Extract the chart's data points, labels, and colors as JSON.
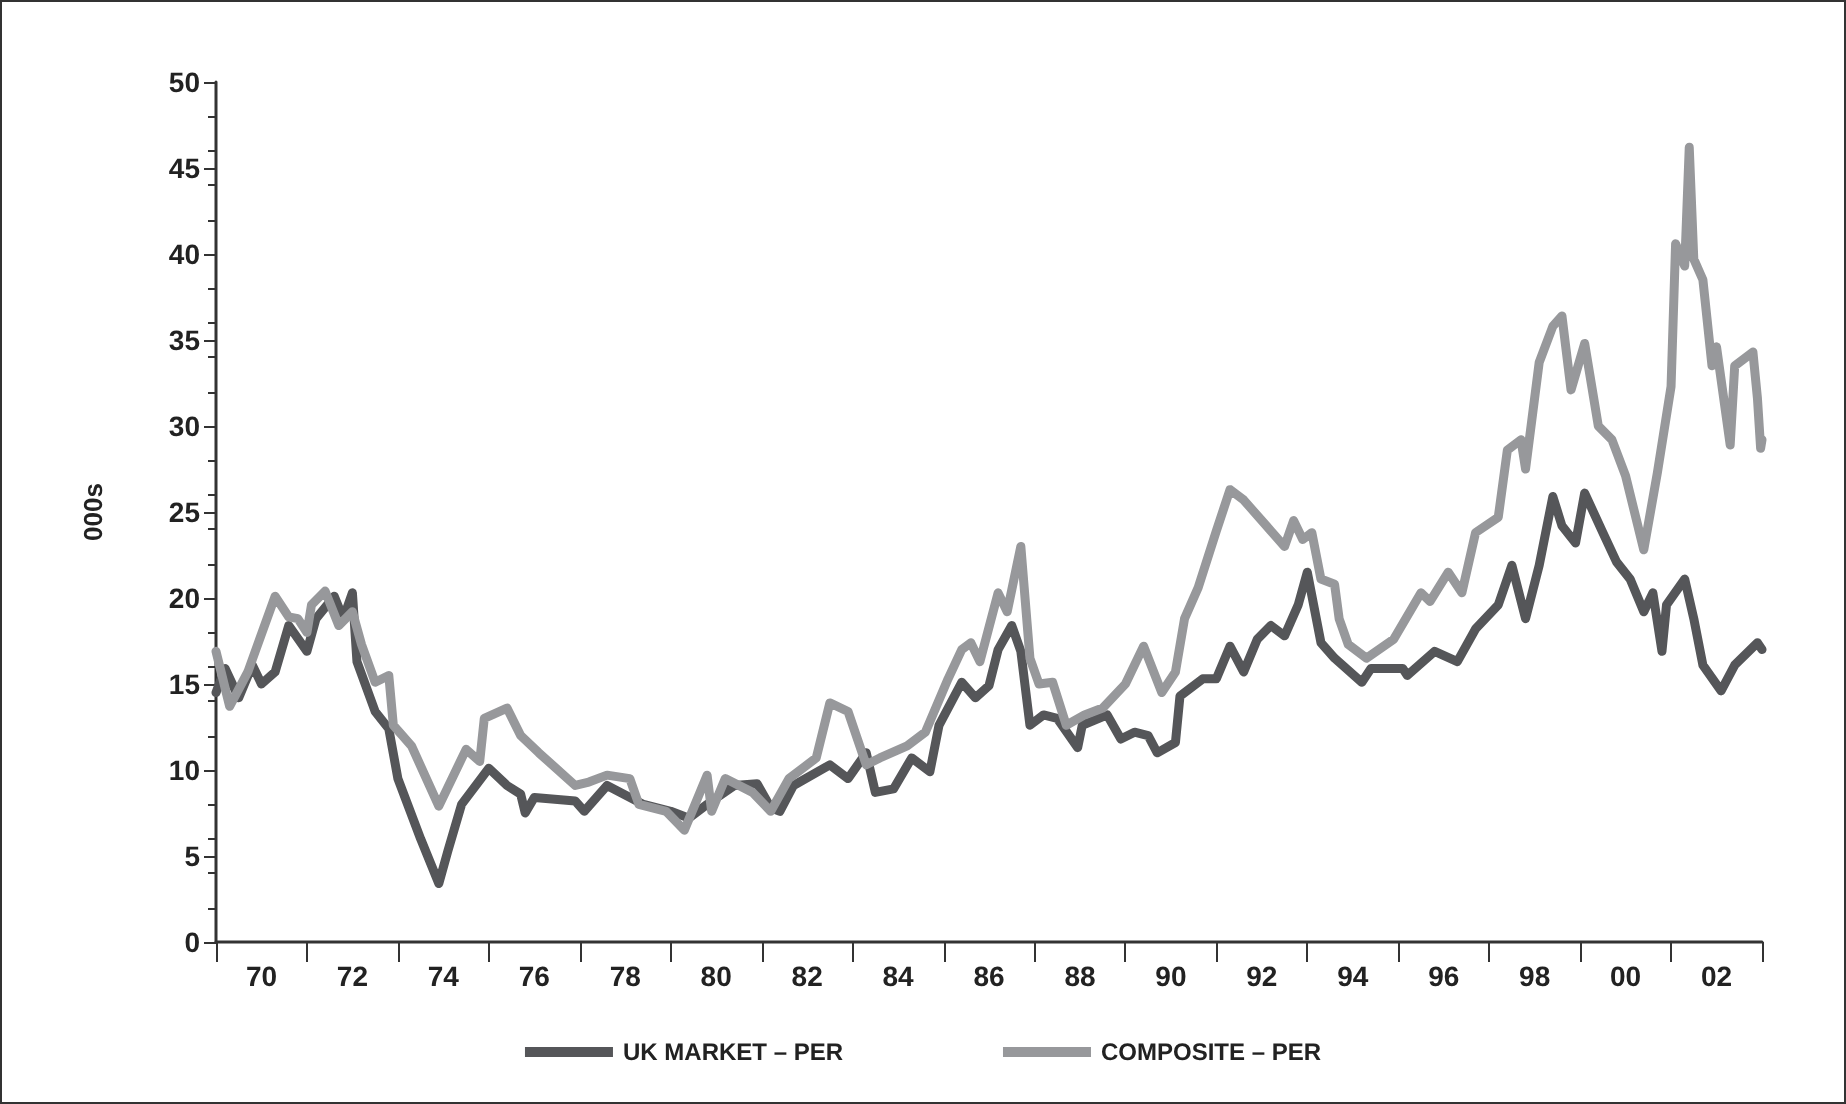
{
  "chart_data": {
    "type": "line",
    "ylabel": "000s",
    "xlim": [
      1969,
      2003
    ],
    "xticks": [
      {
        "value": 1969,
        "label": null
      },
      {
        "value": 1970,
        "label": "70"
      },
      {
        "value": 1971,
        "label": null
      },
      {
        "value": 1972,
        "label": "72"
      },
      {
        "value": 1973,
        "label": null
      },
      {
        "value": 1974,
        "label": "74"
      },
      {
        "value": 1975,
        "label": null
      },
      {
        "value": 1976,
        "label": "76"
      },
      {
        "value": 1977,
        "label": null
      },
      {
        "value": 1978,
        "label": "78"
      },
      {
        "value": 1979,
        "label": null
      },
      {
        "value": 1980,
        "label": "80"
      },
      {
        "value": 1981,
        "label": null
      },
      {
        "value": 1982,
        "label": "82"
      },
      {
        "value": 1983,
        "label": null
      },
      {
        "value": 1984,
        "label": "84"
      },
      {
        "value": 1985,
        "label": null
      },
      {
        "value": 1986,
        "label": "86"
      },
      {
        "value": 1987,
        "label": null
      },
      {
        "value": 1988,
        "label": "88"
      },
      {
        "value": 1989,
        "label": null
      },
      {
        "value": 1990,
        "label": "90"
      },
      {
        "value": 1991,
        "label": null
      },
      {
        "value": 1992,
        "label": "92"
      },
      {
        "value": 1993,
        "label": null
      },
      {
        "value": 1994,
        "label": "94"
      },
      {
        "value": 1995,
        "label": null
      },
      {
        "value": 1996,
        "label": "96"
      },
      {
        "value": 1997,
        "label": null
      },
      {
        "value": 1998,
        "label": "98"
      },
      {
        "value": 1999,
        "label": null
      },
      {
        "value": 2000,
        "label": "00"
      },
      {
        "value": 2001,
        "label": null
      },
      {
        "value": 2002,
        "label": "02"
      },
      {
        "value": 2003,
        "label": null
      }
    ],
    "ylim": [
      0,
      50
    ],
    "yticks": [
      0,
      5,
      10,
      15,
      20,
      25,
      30,
      35,
      40,
      45,
      50
    ],
    "grid": false,
    "legend": "bottom",
    "marker": "none",
    "line_style": "solid",
    "series": [
      {
        "name": "UK MARKET – PER",
        "color": "#555659",
        "x": [
          1969.0,
          1969.2,
          1969.5,
          1969.8,
          1970.0,
          1970.3,
          1970.6,
          1971.0,
          1971.2,
          1971.6,
          1971.8,
          1972.0,
          1972.1,
          1972.5,
          1972.8,
          1973.0,
          1973.5,
          1973.9,
          1974.1,
          1974.4,
          1975.0,
          1975.4,
          1975.7,
          1975.8,
          1976.0,
          1976.9,
          1977.1,
          1977.6,
          1978.4,
          1979.0,
          1979.4,
          1979.8,
          1980.4,
          1980.9,
          1981.2,
          1981.4,
          1981.7,
          1982.5,
          1982.9,
          1983.3,
          1983.5,
          1983.9,
          1984.3,
          1984.7,
          1984.9,
          1985.4,
          1985.7,
          1986.0,
          1986.2,
          1986.5,
          1986.7,
          1986.9,
          1987.2,
          1987.5,
          1987.95,
          1988.05,
          1988.6,
          1988.9,
          1989.2,
          1989.5,
          1989.7,
          1990.1,
          1990.2,
          1990.7,
          1991.0,
          1991.3,
          1991.6,
          1991.9,
          1992.2,
          1992.5,
          1992.8,
          1993.0,
          1993.3,
          1993.6,
          1994.2,
          1994.4,
          1995.1,
          1995.2,
          1995.8,
          1996.3,
          1996.7,
          1997.2,
          1997.5,
          1997.8,
          1998.1,
          1998.4,
          1998.6,
          1998.9,
          1999.1,
          1999.5,
          1999.8,
          2000.1,
          2000.4,
          2000.6,
          2000.8,
          2000.9,
          2001.3,
          2001.5,
          2001.7,
          2002.1,
          2002.4,
          2002.9,
          2003.0
        ],
        "values": [
          14.5,
          15.9,
          14.2,
          16.1,
          15.0,
          15.7,
          18.4,
          16.9,
          18.8,
          20.1,
          18.8,
          20.3,
          16.3,
          13.4,
          12.4,
          9.5,
          6.0,
          3.4,
          5.3,
          8.0,
          10.1,
          9.1,
          8.6,
          7.5,
          8.4,
          8.2,
          7.6,
          9.1,
          8.0,
          7.6,
          7.2,
          8.0,
          9.1,
          9.2,
          7.8,
          7.6,
          9.1,
          10.3,
          9.5,
          11.0,
          8.7,
          8.9,
          10.7,
          9.9,
          12.6,
          15.1,
          14.2,
          14.9,
          17.0,
          18.4,
          16.9,
          12.6,
          13.2,
          13.0,
          11.3,
          12.6,
          13.2,
          11.8,
          12.2,
          12.0,
          11.0,
          11.6,
          14.3,
          15.3,
          15.3,
          17.2,
          15.7,
          17.6,
          18.4,
          17.8,
          19.6,
          21.5,
          17.4,
          16.5,
          15.1,
          15.9,
          15.9,
          15.5,
          16.9,
          16.3,
          18.2,
          19.6,
          21.9,
          18.8,
          21.9,
          25.9,
          24.2,
          23.2,
          26.1,
          23.8,
          22.1,
          21.1,
          19.2,
          20.3,
          16.9,
          19.6,
          21.1,
          18.8,
          16.1,
          14.6,
          16.1,
          17.4,
          17.0
        ]
      },
      {
        "name": "COMPOSITE – PER",
        "color": "#97989b",
        "x": [
          1969.0,
          1969.3,
          1969.7,
          1970.3,
          1970.6,
          1970.8,
          1971.0,
          1971.1,
          1971.4,
          1971.7,
          1972.0,
          1972.2,
          1972.5,
          1972.8,
          1972.9,
          1973.3,
          1973.9,
          1974.5,
          1974.8,
          1974.9,
          1975.4,
          1975.7,
          1976.1,
          1976.9,
          1977.2,
          1977.6,
          1978.1,
          1978.3,
          1978.9,
          1979.3,
          1979.8,
          1979.9,
          1980.2,
          1980.8,
          1981.2,
          1981.6,
          1982.2,
          1982.5,
          1982.9,
          1983.3,
          1983.6,
          1984.2,
          1984.6,
          1985.1,
          1985.4,
          1985.6,
          1985.8,
          1986.2,
          1986.4,
          1986.7,
          1986.9,
          1987.1,
          1987.4,
          1987.7,
          1988.1,
          1988.5,
          1989.0,
          1989.4,
          1989.8,
          1990.1,
          1990.3,
          1990.6,
          1991.0,
          1991.3,
          1991.6,
          1992.2,
          1992.5,
          1992.7,
          1992.9,
          1993.1,
          1993.3,
          1993.6,
          1993.7,
          1993.9,
          1994.3,
          1994.9,
          1995.5,
          1995.7,
          1996.1,
          1996.4,
          1996.7,
          1997.2,
          1997.4,
          1997.7,
          1997.8,
          1998.1,
          1998.4,
          1998.6,
          1998.8,
          1999.1,
          1999.4,
          1999.7,
          2000.0,
          2000.4,
          2000.7,
          2001.0,
          2001.1,
          2001.3,
          2001.4,
          2001.5,
          2001.7,
          2001.9,
          2002.0,
          2002.3,
          2002.4,
          2002.8,
          2002.9,
          2002.97,
          2003.0
        ],
        "values": [
          16.9,
          13.7,
          15.7,
          20.1,
          18.9,
          18.8,
          18.0,
          19.6,
          20.4,
          18.4,
          19.2,
          17.3,
          15.1,
          15.5,
          12.6,
          11.4,
          7.9,
          11.2,
          10.5,
          13.0,
          13.6,
          12.0,
          11.0,
          9.1,
          9.3,
          9.7,
          9.5,
          8.0,
          7.6,
          6.5,
          9.7,
          7.6,
          9.5,
          8.7,
          7.6,
          9.5,
          10.7,
          13.9,
          13.4,
          10.3,
          10.7,
          11.4,
          12.2,
          15.3,
          17.0,
          17.4,
          16.3,
          20.3,
          19.2,
          23.0,
          16.5,
          15.0,
          15.1,
          12.6,
          13.2,
          13.6,
          15.0,
          17.2,
          14.5,
          15.7,
          18.8,
          20.6,
          23.9,
          26.3,
          25.7,
          23.9,
          23.0,
          24.5,
          23.4,
          23.8,
          21.1,
          20.8,
          18.8,
          17.3,
          16.5,
          17.6,
          20.3,
          19.8,
          21.5,
          20.3,
          23.8,
          24.7,
          28.6,
          29.2,
          27.5,
          33.7,
          35.8,
          36.4,
          32.1,
          34.8,
          30.0,
          29.2,
          27.1,
          22.8,
          27.3,
          32.3,
          40.6,
          39.3,
          46.2,
          39.7,
          38.5,
          33.5,
          34.6,
          28.9,
          33.5,
          34.3,
          31.6,
          28.7,
          29.2
        ]
      }
    ]
  }
}
